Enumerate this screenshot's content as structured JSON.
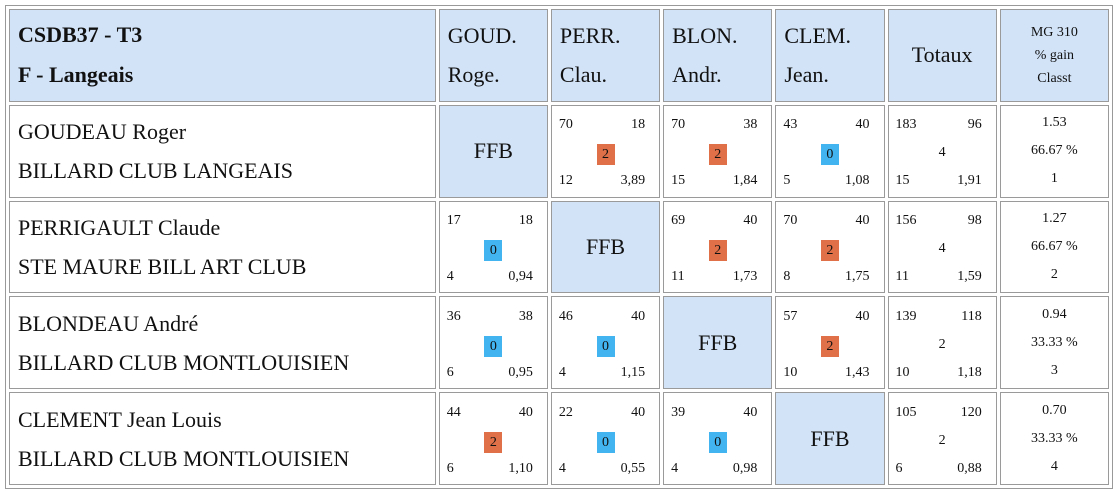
{
  "header": {
    "title_line1": "CSDB37 - T3",
    "title_line2": "F - Langeais",
    "columns": [
      {
        "line1": "GOUD.",
        "line2": "Roge."
      },
      {
        "line1": "PERR.",
        "line2": "Clau."
      },
      {
        "line1": "BLON.",
        "line2": "Andr."
      },
      {
        "line1": "CLEM.",
        "line2": "Jean."
      }
    ],
    "totaux": "Totaux",
    "mg_line1": "MG 310",
    "mg_line2": "% gain",
    "mg_line3": "Classt"
  },
  "ffb_label": "FFB",
  "rows": [
    {
      "name": "GOUDEAU Roger",
      "club": "BILLARD CLUB LANGEAIS",
      "matches": [
        null,
        {
          "points": "70",
          "target": "18",
          "result": "2",
          "outcome": "win",
          "innings": "12",
          "avg": "3,89"
        },
        {
          "points": "70",
          "target": "38",
          "result": "2",
          "outcome": "win",
          "innings": "15",
          "avg": "1,84"
        },
        {
          "points": "43",
          "target": "40",
          "result": "0",
          "outcome": "loss",
          "innings": "5",
          "avg": "1,08"
        }
      ],
      "total": {
        "points": "183",
        "target": "96",
        "result": "4",
        "innings": "15",
        "avg": "1,91"
      },
      "mg": {
        "value": "1.53",
        "pct": "66.67 %",
        "rank": "1"
      }
    },
    {
      "name": "PERRIGAULT Claude",
      "club": "STE MAURE BILL ART CLUB",
      "matches": [
        {
          "points": "17",
          "target": "18",
          "result": "0",
          "outcome": "loss",
          "innings": "4",
          "avg": "0,94"
        },
        null,
        {
          "points": "69",
          "target": "40",
          "result": "2",
          "outcome": "win",
          "innings": "11",
          "avg": "1,73"
        },
        {
          "points": "70",
          "target": "40",
          "result": "2",
          "outcome": "win",
          "innings": "8",
          "avg": "1,75"
        }
      ],
      "total": {
        "points": "156",
        "target": "98",
        "result": "4",
        "innings": "11",
        "avg": "1,59"
      },
      "mg": {
        "value": "1.27",
        "pct": "66.67 %",
        "rank": "2"
      }
    },
    {
      "name": "BLONDEAU André",
      "club": "BILLARD CLUB MONTLOUISIEN",
      "matches": [
        {
          "points": "36",
          "target": "38",
          "result": "0",
          "outcome": "loss",
          "innings": "6",
          "avg": "0,95"
        },
        {
          "points": "46",
          "target": "40",
          "result": "0",
          "outcome": "loss",
          "innings": "4",
          "avg": "1,15"
        },
        null,
        {
          "points": "57",
          "target": "40",
          "result": "2",
          "outcome": "win",
          "innings": "10",
          "avg": "1,43"
        }
      ],
      "total": {
        "points": "139",
        "target": "118",
        "result": "2",
        "innings": "10",
        "avg": "1,18"
      },
      "mg": {
        "value": "0.94",
        "pct": "33.33 %",
        "rank": "3"
      }
    },
    {
      "name": "CLEMENT Jean Louis",
      "club": "BILLARD CLUB MONTLOUISIEN",
      "matches": [
        {
          "points": "44",
          "target": "40",
          "result": "2",
          "outcome": "win",
          "innings": "6",
          "avg": "1,10"
        },
        {
          "points": "22",
          "target": "40",
          "result": "0",
          "outcome": "loss",
          "innings": "4",
          "avg": "0,55"
        },
        {
          "points": "39",
          "target": "40",
          "result": "0",
          "outcome": "loss",
          "innings": "4",
          "avg": "0,98"
        },
        null
      ],
      "total": {
        "points": "105",
        "target": "120",
        "result": "2",
        "innings": "6",
        "avg": "0,88"
      },
      "mg": {
        "value": "0.70",
        "pct": "33.33 %",
        "rank": "4"
      }
    }
  ],
  "colors": {
    "header_bg": "#d2e3f8",
    "win_badge": "#df7048",
    "loss_badge": "#42b5f0"
  }
}
